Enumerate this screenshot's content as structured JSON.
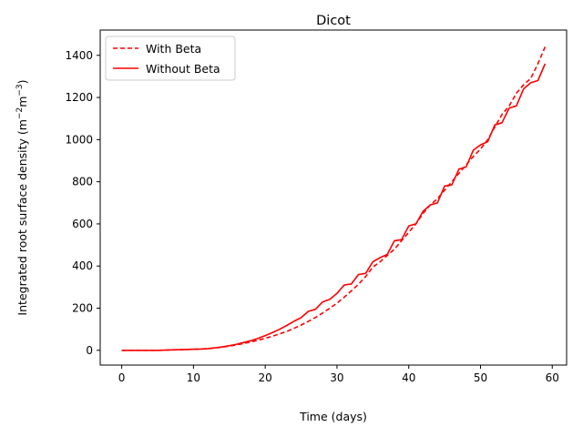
{
  "chart_data": {
    "type": "line",
    "title": "Dicot",
    "xlabel": "Time (days)",
    "ylabel_main": "Integrated root surface density (m",
    "ylabel_sup1": "−2",
    "ylabel_mid": "m",
    "ylabel_sup2": "−3",
    "ylabel_end": ")",
    "xlim": [
      -3,
      62
    ],
    "ylim": [
      -70,
      1520
    ],
    "xticks": [
      0,
      10,
      20,
      30,
      40,
      50,
      60
    ],
    "yticks": [
      0,
      200,
      400,
      600,
      800,
      1000,
      1200,
      1400
    ],
    "grid": false,
    "legend_position": "top-left",
    "series": [
      {
        "name": "With Beta",
        "color": "#ff0000",
        "style": "dashed",
        "x": [
          0,
          1,
          2,
          3,
          4,
          5,
          6,
          7,
          8,
          9,
          10,
          11,
          12,
          13,
          14,
          15,
          16,
          17,
          18,
          19,
          20,
          21,
          22,
          23,
          24,
          25,
          26,
          27,
          28,
          29,
          30,
          31,
          32,
          33,
          34,
          35,
          36,
          37,
          38,
          39,
          40,
          41,
          42,
          43,
          44,
          45,
          46,
          47,
          48,
          49,
          50,
          51,
          52,
          53,
          54,
          55,
          56,
          57,
          58,
          59
        ],
        "y": [
          0,
          0,
          0,
          0,
          0,
          0,
          1,
          2,
          3,
          4,
          5,
          6,
          8,
          11,
          15,
          20,
          26,
          32,
          40,
          48,
          57,
          67,
          78,
          90,
          104,
          120,
          137,
          156,
          177,
          200,
          224,
          252,
          282,
          314,
          350,
          395,
          420,
          450,
          480,
          520,
          560,
          600,
          650,
          690,
          720,
          760,
          800,
          840,
          880,
          920,
          955,
          1000,
          1060,
          1120,
          1160,
          1220,
          1260,
          1290,
          1360,
          1440
        ]
      },
      {
        "name": "Without Beta",
        "color": "#ff0000",
        "style": "solid",
        "x": [
          0,
          1,
          2,
          3,
          4,
          5,
          6,
          7,
          8,
          9,
          10,
          11,
          12,
          13,
          14,
          15,
          16,
          17,
          18,
          19,
          20,
          21,
          22,
          23,
          24,
          25,
          26,
          27,
          28,
          29,
          30,
          31,
          32,
          33,
          34,
          35,
          36,
          37,
          38,
          39,
          40,
          41,
          42,
          43,
          44,
          45,
          46,
          47,
          48,
          49,
          50,
          51,
          52,
          53,
          54,
          55,
          56,
          57,
          58,
          59
        ],
        "y": [
          0,
          0,
          0,
          0,
          0,
          0,
          1,
          2,
          3,
          4,
          5,
          6,
          8,
          12,
          16,
          22,
          29,
          37,
          46,
          57,
          70,
          84,
          100,
          118,
          138,
          155,
          185,
          195,
          230,
          242,
          270,
          310,
          315,
          360,
          365,
          420,
          440,
          455,
          520,
          525,
          590,
          600,
          660,
          690,
          700,
          780,
          785,
          860,
          870,
          950,
          975,
          990,
          1070,
          1080,
          1150,
          1160,
          1240,
          1270,
          1280,
          1360
        ]
      }
    ]
  }
}
